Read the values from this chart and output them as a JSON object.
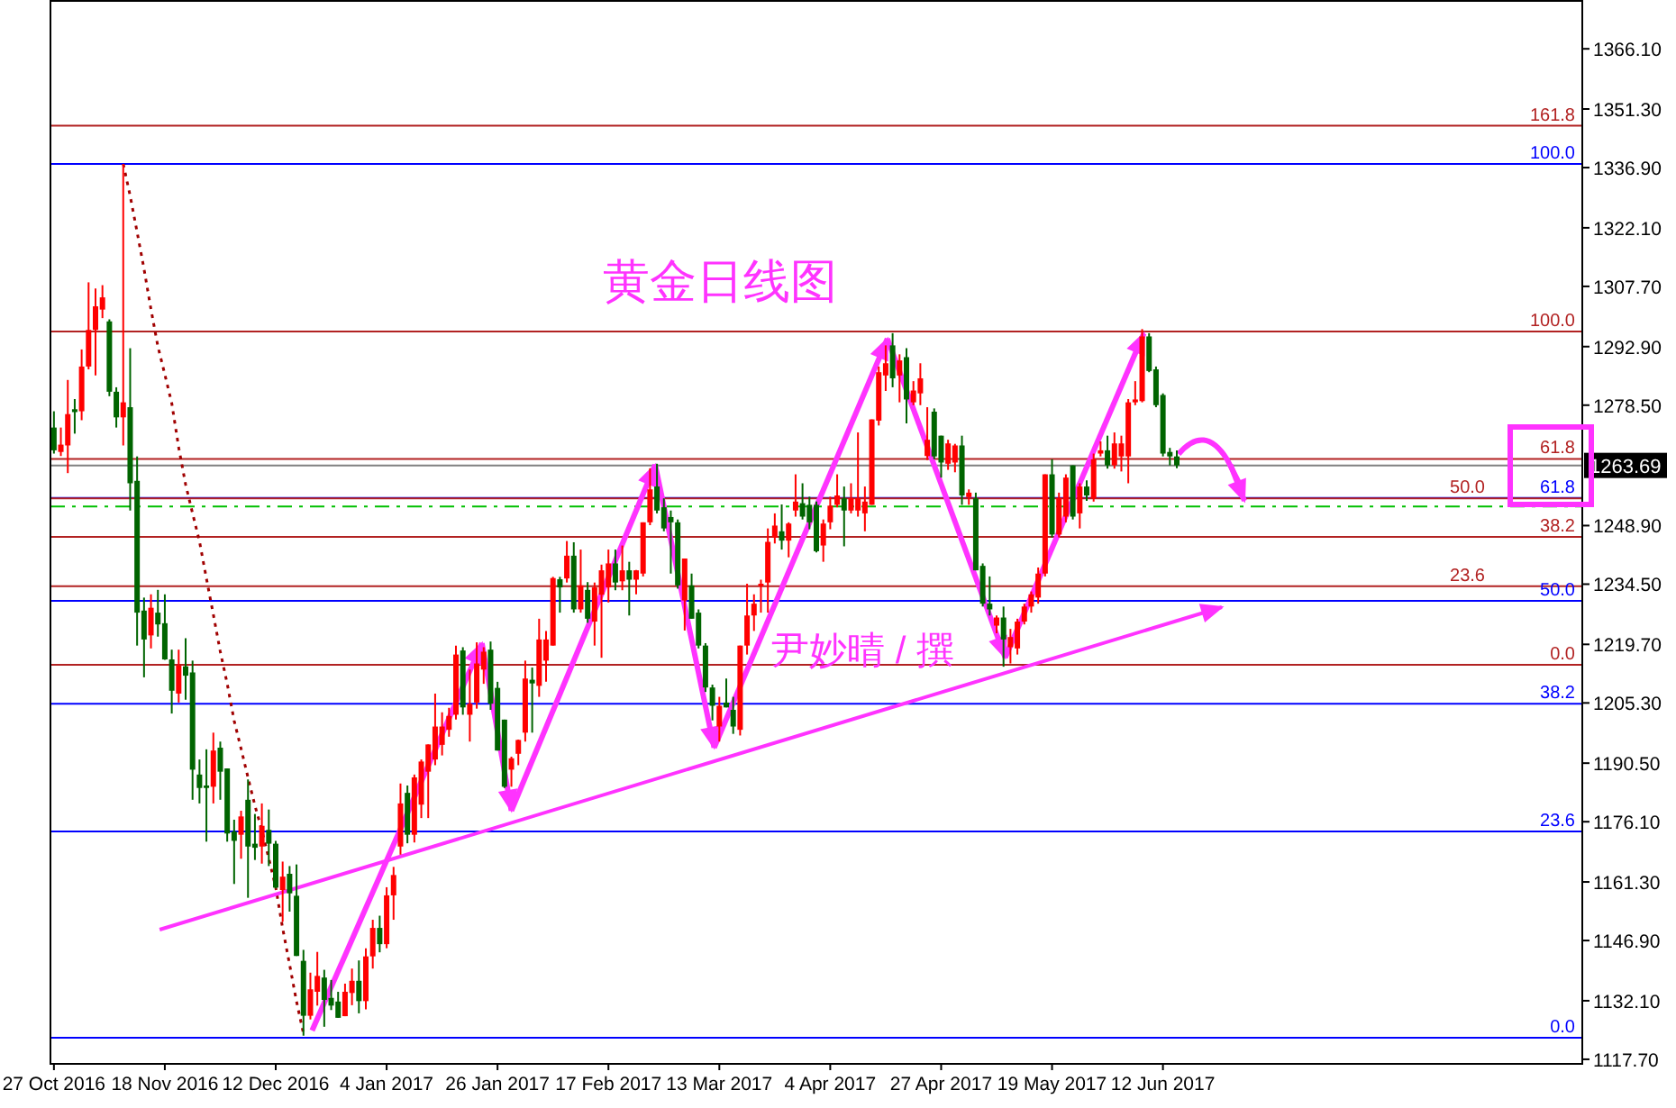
{
  "chart_data": {
    "type": "candlestick",
    "title": "黄金日线图",
    "categories": [
      "27 Oct 2016",
      null,
      null,
      null,
      null,
      null,
      null,
      null,
      null,
      null,
      null,
      null,
      null,
      null,
      null,
      null,
      "18 Nov 2016",
      null,
      null,
      null,
      null,
      null,
      null,
      null,
      null,
      null,
      null,
      null,
      null,
      null,
      null,
      null,
      "12 Dec 2016",
      null,
      null,
      null,
      null,
      null,
      null,
      null,
      null,
      null,
      null,
      null,
      null,
      null,
      null,
      null,
      "4 Jan 2017",
      null,
      null,
      null,
      null,
      null,
      null,
      null,
      null,
      null,
      null,
      null,
      null,
      null,
      null,
      null,
      "26 Jan 2017",
      null,
      null,
      null,
      null,
      null,
      null,
      null,
      null,
      null,
      null,
      null,
      null,
      null,
      null,
      null,
      "17 Feb 2017",
      null,
      null,
      null,
      null,
      null,
      null,
      null,
      null,
      null,
      null,
      null,
      null,
      null,
      null,
      null,
      "13 Mar 2017",
      null,
      null,
      null,
      null,
      null,
      null,
      null,
      null,
      null,
      null,
      null,
      null,
      null,
      null,
      null,
      "4 Apr 2017",
      null,
      null,
      null,
      null,
      null,
      null,
      null,
      null,
      null,
      null,
      null,
      null,
      null,
      null,
      null,
      "27 Apr 2017",
      null,
      null,
      null,
      null,
      null,
      null,
      null,
      null,
      null,
      null,
      null,
      null,
      null,
      null,
      null,
      "19 May 2017",
      null,
      null,
      null,
      null,
      null,
      null,
      null,
      null,
      null,
      null,
      null,
      null,
      null,
      null,
      null,
      "12 Jun 2017",
      null,
      null,
      null,
      null,
      null,
      null,
      null,
      null,
      null,
      null,
      null,
      null,
      null,
      null,
      null,
      null,
      null,
      null,
      null,
      null,
      null,
      null,
      null,
      null,
      null,
      null,
      null,
      null,
      null,
      null,
      null,
      null,
      null,
      null,
      null,
      null,
      null,
      null,
      null,
      null,
      null,
      null,
      null,
      null,
      null,
      null,
      null,
      null,
      null,
      null,
      null,
      null,
      null,
      null,
      null,
      null,
      null,
      null,
      null,
      null
    ],
    "ohlc": [
      [
        1273,
        1277,
        1266.6,
        1267.4
      ],
      [
        1267,
        1273,
        1266,
        1268.8
      ],
      [
        1268.6,
        1284.7,
        1261.8,
        1276.3
      ],
      [
        1277.5,
        1280,
        1271.5,
        1276.8
      ],
      [
        1277,
        1292.2,
        1274.8,
        1288
      ],
      [
        1288,
        1308.7,
        1287.3,
        1297
      ],
      [
        1297,
        1307.2,
        1285.8,
        1302.8
      ],
      [
        1302,
        1308,
        1299.9,
        1305
      ],
      [
        1299.1,
        1299.6,
        1280.7,
        1281.8
      ],
      [
        1281.8,
        1282.9,
        1273,
        1275.5
      ],
      [
        1275.5,
        1337.8,
        1268.6,
        1279.2
      ],
      [
        1278,
        1292.5,
        1252.6,
        1259.3
      ],
      [
        1259.9,
        1265.9,
        1219.4,
        1227.5
      ],
      [
        1228,
        1231.2,
        1211.6,
        1220.9
      ],
      [
        1221.9,
        1232,
        1218.7,
        1228.7
      ],
      [
        1227.5,
        1233.1,
        1221.6,
        1224.6
      ],
      [
        1224.9,
        1232,
        1215.9,
        1216
      ],
      [
        1216,
        1218.4,
        1202.7,
        1208.3
      ],
      [
        1207.6,
        1218.4,
        1205.4,
        1214.5
      ],
      [
        1214.3,
        1221.2,
        1206.1,
        1212
      ],
      [
        1212.8,
        1215.7,
        1181.5,
        1188.9
      ],
      [
        1187.7,
        1191.4,
        1180.6,
        1184.4
      ],
      [
        1185,
        1193.9,
        1171.2,
        1184.4
      ],
      [
        1184.7,
        1198,
        1180.6,
        1193.6
      ],
      [
        1194.3,
        1195.8,
        1181.5,
        1188.4
      ],
      [
        1189.2,
        1189.2,
        1171.2,
        1173.2
      ],
      [
        1173.7,
        1176.6,
        1160.8,
        1171.4
      ],
      [
        1172.9,
        1178.8,
        1167,
        1177.4
      ],
      [
        1181.5,
        1186.5,
        1157.4,
        1170
      ],
      [
        1170.7,
        1178,
        1166.7,
        1169.7
      ],
      [
        1170,
        1180.6,
        1165.8,
        1175.1
      ],
      [
        1174.1,
        1179.1,
        1165.2,
        1170.7
      ],
      [
        1170.7,
        1171.4,
        1159.7,
        1159.9
      ],
      [
        1159.3,
        1166.3,
        1151.5,
        1162.6
      ],
      [
        1163.3,
        1165.2,
        1154,
        1158.5
      ],
      [
        1157.9,
        1165.6,
        1143.1,
        1143.1
      ],
      [
        1141.9,
        1144.6,
        1123.5,
        1128.4
      ],
      [
        1128.4,
        1139,
        1127.5,
        1134.9
      ],
      [
        1134.3,
        1144.1,
        1130.9,
        1138.2
      ],
      [
        1137.8,
        1139.7,
        1125.7,
        1132.3
      ],
      [
        1132.8,
        1137.2,
        1129.8,
        1130.9
      ],
      [
        1131.9,
        1134.3,
        1127.9,
        1127.9
      ],
      [
        1128.3,
        1136.3,
        1128.3,
        1134.3
      ],
      [
        1134,
        1140,
        1131,
        1137
      ],
      [
        1137,
        1142,
        1129,
        1132
      ],
      [
        1132,
        1145,
        1130,
        1143
      ],
      [
        1143,
        1152,
        1140,
        1150
      ],
      [
        1150,
        1153,
        1144,
        1146
      ],
      [
        1146,
        1160,
        1145,
        1158
      ],
      [
        1158,
        1165,
        1152,
        1163
      ],
      [
        1170,
        1185.5,
        1168,
        1180.6
      ],
      [
        1183.2,
        1185,
        1170.8,
        1172.9
      ],
      [
        1172.9,
        1187.7,
        1171,
        1187
      ],
      [
        1180.3,
        1191.4,
        1177,
        1190.9
      ],
      [
        1188.4,
        1195.1,
        1177,
        1195.1
      ],
      [
        1191.4,
        1207.6,
        1190,
        1199.5
      ],
      [
        1195,
        1203,
        1192.4,
        1199.5
      ],
      [
        1198.7,
        1204.1,
        1197,
        1202.1
      ],
      [
        1202.4,
        1219.4,
        1201.2,
        1217.2
      ],
      [
        1218.2,
        1219,
        1202.4,
        1204.2
      ],
      [
        1202.4,
        1213.5,
        1195.8,
        1205.1
      ],
      [
        1205.4,
        1220.2,
        1203.9,
        1215
      ],
      [
        1213.5,
        1219,
        1210,
        1217.9
      ],
      [
        1218.4,
        1220.4,
        1203.6,
        1205.1
      ],
      [
        1209,
        1210.5,
        1193.6,
        1193.6
      ],
      [
        1201.2,
        1201.2,
        1184.4,
        1184.7
      ],
      [
        1188.9,
        1192.1,
        1184.7,
        1191.7
      ],
      [
        1192.8,
        1196.3,
        1190,
        1196.2
      ],
      [
        1198,
        1215.7,
        1195.8,
        1211.3
      ],
      [
        1211,
        1214,
        1198,
        1210.1
      ],
      [
        1209.5,
        1226,
        1206.8,
        1220.9
      ],
      [
        1215.7,
        1223,
        1210.5,
        1220.9
      ],
      [
        1219.4,
        1236.3,
        1219.4,
        1236
      ],
      [
        1235.7,
        1236.3,
        1227.5,
        1233.7
      ],
      [
        1235.9,
        1245.1,
        1234.9,
        1241.5
      ],
      [
        1241.5,
        1244.8,
        1227.5,
        1228.3
      ],
      [
        1228.3,
        1243,
        1227.5,
        1234.2
      ],
      [
        1233.1,
        1235,
        1225,
        1226
      ],
      [
        1225.3,
        1234.9,
        1219.4,
        1233.7
      ],
      [
        1231.9,
        1239.3,
        1216.4,
        1237.9
      ],
      [
        1233.7,
        1243,
        1230,
        1239.6
      ],
      [
        1239.6,
        1243,
        1233,
        1234.9
      ],
      [
        1235.2,
        1244,
        1233,
        1237.9
      ],
      [
        1237.9,
        1240,
        1226.8,
        1235.6
      ],
      [
        1235.6,
        1238,
        1232,
        1237.9
      ],
      [
        1237.1,
        1249.7,
        1236.4,
        1249.7
      ],
      [
        1249.7,
        1263,
        1249,
        1257.8
      ],
      [
        1258.5,
        1264.1,
        1251.9,
        1252.6
      ],
      [
        1253.4,
        1255.6,
        1247.5,
        1248.2
      ],
      [
        1251,
        1252.6,
        1237.1,
        1249.7
      ],
      [
        1249.7,
        1250.4,
        1233.4,
        1234.2
      ],
      [
        1230.5,
        1240.8,
        1223.1,
        1240.8
      ],
      [
        1234.2,
        1237.1,
        1226,
        1226
      ],
      [
        1227.5,
        1228.3,
        1218.7,
        1219.4
      ],
      [
        1219.4,
        1220,
        1208,
        1209.1
      ],
      [
        1209.1,
        1209.8,
        1201,
        1204.6
      ],
      [
        1199.5,
        1206.8,
        1195.8,
        1204.6
      ],
      [
        1205.4,
        1211.3,
        1204.2,
        1204.2
      ],
      [
        1203.6,
        1206.8,
        1197.7,
        1199.5
      ],
      [
        1198.7,
        1219.4,
        1197.3,
        1219.4
      ],
      [
        1219.4,
        1234.6,
        1217.2,
        1226.8
      ],
      [
        1226.8,
        1232,
        1223,
        1229.7
      ],
      [
        1234,
        1235.6,
        1227.5,
        1234.6
      ],
      [
        1234.9,
        1248.2,
        1227.5,
        1244.9
      ],
      [
        1246,
        1251.9,
        1244.5,
        1248.9
      ],
      [
        1247.5,
        1254.1,
        1243,
        1245.2
      ],
      [
        1245.2,
        1249.7,
        1241.1,
        1249.4
      ],
      [
        1252.6,
        1261.5,
        1251.1,
        1254.8
      ],
      [
        1254.4,
        1259.3,
        1250.4,
        1251.1
      ],
      [
        1254,
        1256,
        1248,
        1249.7
      ],
      [
        1254,
        1254.8,
        1242.3,
        1242.6
      ],
      [
        1244,
        1250.4,
        1240,
        1249.4
      ],
      [
        1249.7,
        1256,
        1248,
        1253.8
      ],
      [
        1254,
        1261.5,
        1253.4,
        1256.3
      ],
      [
        1255.6,
        1258.5,
        1243.8,
        1252.6
      ],
      [
        1252.6,
        1259.3,
        1251.9,
        1255.6
      ],
      [
        1252.6,
        1271.8,
        1251.1,
        1255.6
      ],
      [
        1251.9,
        1258.5,
        1247.5,
        1254.8
      ],
      [
        1254,
        1275,
        1254,
        1275
      ],
      [
        1274.7,
        1288,
        1273.5,
        1286.6
      ],
      [
        1285.8,
        1293.2,
        1282,
        1288.8
      ],
      [
        1293.2,
        1296.2,
        1282.9,
        1285.1
      ],
      [
        1285.8,
        1291,
        1279.2,
        1289.5
      ],
      [
        1290.3,
        1292.5,
        1274,
        1279.9
      ],
      [
        1279.2,
        1284.4,
        1278.5,
        1282.1
      ],
      [
        1281.4,
        1288.8,
        1278.5,
        1285.1
      ],
      [
        1266,
        1278,
        1265,
        1270
      ],
      [
        1276.9,
        1277.7,
        1265.2,
        1265.9
      ],
      [
        1271,
        1271,
        1260.7,
        1264.4
      ],
      [
        1264.1,
        1270,
        1262.6,
        1269.1
      ],
      [
        1264.4,
        1269,
        1262,
        1268.6
      ],
      [
        1268.6,
        1271,
        1254,
        1256.3
      ],
      [
        1255.9,
        1257.8,
        1254,
        1257
      ],
      [
        1255.6,
        1257,
        1237.9,
        1237.9
      ],
      [
        1239,
        1239.6,
        1229,
        1229.7
      ],
      [
        1229.7,
        1236.4,
        1226.8,
        1228.3
      ],
      [
        1224.3,
        1226.8,
        1222.4,
        1226.3
      ],
      [
        1226.3,
        1229,
        1214.2,
        1220.9
      ],
      [
        1219,
        1223.5,
        1215,
        1221.5
      ],
      [
        1218.7,
        1226,
        1217.2,
        1225.3
      ],
      [
        1225.3,
        1229.7,
        1224.6,
        1229
      ],
      [
        1229,
        1232.7,
        1227.5,
        1232
      ],
      [
        1231.2,
        1238.6,
        1229.7,
        1237.1
      ],
      [
        1237.1,
        1261.5,
        1236.4,
        1261.5
      ],
      [
        1261.5,
        1265.2,
        1246,
        1246.7
      ],
      [
        1246.7,
        1257,
        1246,
        1255.6
      ],
      [
        1251.1,
        1261.5,
        1249.7,
        1260.7
      ],
      [
        1263.7,
        1263.7,
        1250.4,
        1251.1
      ],
      [
        1251.9,
        1259.3,
        1248.2,
        1258.5
      ],
      [
        1258.5,
        1260,
        1255,
        1256.3
      ],
      [
        1255.6,
        1266.6,
        1254.8,
        1265.2
      ],
      [
        1266.6,
        1269.6,
        1265.9,
        1267.4
      ],
      [
        1267.4,
        1271,
        1262.9,
        1263.7
      ],
      [
        1263.7,
        1271.8,
        1262.9,
        1269.1
      ],
      [
        1265.9,
        1271,
        1262.2,
        1269.1
      ],
      [
        1265.9,
        1280,
        1259.3,
        1279.2
      ],
      [
        1279.2,
        1284.4,
        1278.5,
        1279.9
      ],
      [
        1279.5,
        1297.2,
        1279.2,
        1295.4
      ],
      [
        1295.4,
        1296.2,
        1286.6,
        1286.9
      ],
      [
        1287.3,
        1288,
        1278,
        1278.5
      ],
      [
        1281,
        1281.4,
        1265.9,
        1266.6
      ],
      [
        1267,
        1268,
        1263.7,
        1265.9
      ],
      [
        1265.9,
        1267.4,
        1263,
        1263.69
      ],
      null,
      null,
      null,
      null,
      null,
      null,
      null,
      null,
      null,
      null,
      null,
      null,
      null,
      null,
      null,
      null,
      null,
      null,
      null,
      null,
      null,
      null,
      null,
      null,
      null,
      null,
      null,
      null,
      null,
      null,
      null,
      null,
      null,
      null,
      null,
      null,
      null,
      null,
      null,
      null,
      null,
      null,
      null,
      null,
      null,
      null,
      null,
      null,
      null,
      null,
      null,
      null,
      null,
      null,
      null,
      null,
      null,
      null
    ],
    "colors": [
      "#006400",
      "#ff0000",
      "#ff0000",
      "#006400",
      "#ff0000",
      "#ff0000",
      "#ff0000",
      "#ff0000",
      "#006400",
      "#006400",
      "#ff0000",
      "#006400",
      "#006400",
      "#006400",
      "#ff0000",
      "#006400",
      "#006400",
      "#006400",
      "#ff0000",
      "#006400",
      "#006400",
      "#006400",
      "#006400",
      "#ff0000",
      "#006400",
      "#006400",
      "#006400",
      "#ff0000",
      "#006400",
      "#006400",
      "#ff0000",
      "#006400",
      "#006400",
      "#ff0000",
      "#006400",
      "#006400",
      "#006400",
      "#ff0000",
      "#ff0000",
      "#006400",
      "#006400",
      "#006400",
      "#ff0000",
      "#ff0000",
      "#006400",
      "#ff0000",
      "#ff0000",
      "#006400",
      "#ff0000",
      "#ff0000",
      "#ff0000",
      "#006400",
      "#ff0000",
      "#ff0000",
      "#ff0000",
      "#ff0000",
      "#ff0000",
      "#ff0000",
      "#ff0000",
      "#006400",
      "#ff0000",
      "#ff0000",
      "#ff0000",
      "#006400",
      "#006400",
      "#006400",
      "#ff0000",
      "#ff0000",
      "#ff0000",
      "#006400",
      "#ff0000",
      "#ff0000",
      "#ff0000",
      "#006400",
      "#ff0000",
      "#006400",
      "#ff0000",
      "#006400",
      "#ff0000",
      "#ff0000",
      "#ff0000",
      "#006400",
      "#ff0000",
      "#006400",
      "#ff0000",
      "#ff0000",
      "#ff0000",
      "#006400",
      "#006400",
      "#006400",
      "#006400",
      "#ff0000",
      "#006400",
      "#006400",
      "#006400",
      "#006400",
      "#ff0000",
      "#006400",
      "#006400",
      "#ff0000",
      "#ff0000",
      "#ff0000",
      "#ff0000",
      "#ff0000",
      "#ff0000",
      "#006400",
      "#ff0000",
      "#ff0000",
      "#006400",
      "#006400",
      "#006400",
      "#ff0000",
      "#ff0000",
      "#ff0000",
      "#006400",
      "#ff0000",
      "#ff0000",
      "#ff0000",
      "#ff0000",
      "#ff0000",
      "#ff0000",
      "#006400",
      "#ff0000",
      "#006400",
      "#ff0000",
      "#ff0000",
      "#ff0000",
      "#006400",
      "#006400",
      "#ff0000",
      "#ff0000",
      "#006400",
      "#ff0000",
      "#006400",
      "#006400",
      "#006400",
      "#ff0000",
      "#006400",
      "#ff0000",
      "#ff0000",
      "#ff0000",
      "#ff0000",
      "#ff0000",
      "#ff0000",
      "#006400",
      "#ff0000",
      "#ff0000",
      "#006400",
      "#ff0000",
      "#006400",
      "#ff0000",
      "#ff0000",
      "#006400",
      "#ff0000",
      "#ff0000",
      "#ff0000",
      "#ff0000",
      "#ff0000",
      "#006400",
      "#006400",
      "#006400",
      "#006400",
      "#006400",
      null,
      null,
      null,
      null,
      null,
      null,
      null,
      null,
      null,
      null,
      null,
      null,
      null,
      null,
      null,
      null,
      null,
      null,
      null,
      null,
      null,
      null,
      null,
      null,
      null,
      null,
      null,
      null,
      null,
      null,
      null,
      null,
      null,
      null,
      null,
      null,
      null,
      null,
      null,
      null,
      null,
      null,
      null,
      null,
      null,
      null,
      null,
      null,
      null,
      null,
      null,
      null,
      null,
      null,
      null,
      null,
      null,
      null
    ],
    "series": [
      {
        "type": "line",
        "color": "#a00000",
        "line_style": "dotted",
        "marker": "none",
        "values": [
          null,
          null,
          null,
          null,
          null,
          null,
          null,
          null,
          null,
          null,
          1337.8,
          1330,
          1321,
          1312,
          1302,
          1293,
          1286,
          1279,
          1268,
          1259,
          1252,
          1245,
          1236,
          1227,
          1218,
          1210,
          1201,
          1194,
          1187,
          1180,
          1174,
          1167,
          1160,
          1150,
          1141,
          1132,
          1124,
          null,
          null,
          null,
          null,
          null,
          null,
          null,
          null,
          null,
          null,
          null,
          null,
          null,
          null,
          null,
          null,
          null,
          null,
          null,
          null,
          null,
          null,
          null,
          null,
          null,
          null,
          null,
          null,
          null,
          null,
          null,
          null,
          null,
          null,
          null,
          null,
          null,
          null,
          null,
          null,
          null,
          null,
          null,
          null,
          null,
          null,
          null,
          null,
          null,
          null,
          null,
          null,
          null,
          null,
          null,
          null,
          null,
          null,
          null,
          null,
          null,
          null,
          null,
          null,
          null,
          null,
          null,
          null,
          null,
          null,
          null,
          null,
          null,
          null,
          null,
          null,
          null,
          null,
          null,
          null,
          null,
          null,
          null,
          null,
          null,
          null,
          null,
          null,
          null,
          null,
          null,
          null,
          null,
          null,
          null,
          null,
          null,
          null,
          null,
          null,
          null,
          null,
          null,
          null,
          null,
          null,
          null,
          null,
          null,
          null,
          null,
          null,
          null,
          null,
          null,
          null,
          null,
          null,
          null,
          null,
          null,
          null,
          null,
          null,
          null,
          null,
          null,
          null,
          null,
          null,
          null,
          null,
          null,
          null,
          null,
          null,
          null,
          null,
          null,
          null,
          null,
          null,
          null,
          null,
          null,
          null,
          null,
          null,
          null,
          null,
          null,
          null,
          null,
          null,
          null,
          null,
          null,
          null,
          null,
          null,
          null,
          null,
          null,
          null,
          null,
          null,
          null,
          null,
          null,
          null,
          null,
          null,
          null,
          null,
          null,
          null,
          null,
          null,
          null,
          null,
          null,
          null,
          null,
          null
        ]
      }
    ],
    "ylim": [
      1116.8,
      1378.1
    ],
    "yticks": [
      {
        "value": 1366.1,
        "label": "1366.10"
      },
      {
        "value": 1351.3,
        "label": "1351.30"
      },
      {
        "value": 1336.9,
        "label": "1336.90"
      },
      {
        "value": 1322.1,
        "label": "1322.10"
      },
      {
        "value": 1307.7,
        "label": "1307.70"
      },
      {
        "value": 1292.9,
        "label": "1292.90"
      },
      {
        "value": 1278.5,
        "label": "1278.50"
      },
      {
        "value": 1248.9,
        "label": "1248.90"
      },
      {
        "value": 1234.5,
        "label": "1234.50"
      },
      {
        "value": 1219.7,
        "label": "1219.70"
      },
      {
        "value": 1205.3,
        "label": "1205.30"
      },
      {
        "value": 1190.5,
        "label": "1190.50"
      },
      {
        "value": 1176.1,
        "label": "1176.10"
      },
      {
        "value": 1161.3,
        "label": "1161.30"
      },
      {
        "value": 1146.9,
        "label": "1146.90"
      },
      {
        "value": 1132.1,
        "label": "1132.10"
      },
      {
        "value": 1117.7,
        "label": "1117.70"
      }
    ],
    "grid": false,
    "ref_lines": [
      {
        "axis": "y",
        "value": 1123.0,
        "color": "#0000ff"
      },
      {
        "axis": "y",
        "value": 1173.7,
        "color": "#0000ff"
      },
      {
        "axis": "y",
        "value": 1205.1,
        "color": "#0000ff"
      },
      {
        "axis": "y",
        "value": 1230.4,
        "color": "#0000ff"
      },
      {
        "axis": "y",
        "value": 1255.7,
        "color": "#0000ff"
      },
      {
        "axis": "y",
        "value": 1337.8,
        "color": "#0000ff"
      },
      {
        "axis": "y",
        "value": 1214.7,
        "color": "#b22222"
      },
      {
        "axis": "y",
        "value": 1234.0,
        "color": "#b22222"
      },
      {
        "axis": "y",
        "value": 1246.1,
        "color": "#b22222"
      },
      {
        "axis": "y",
        "value": 1255.6,
        "color": "#b22222"
      },
      {
        "axis": "y",
        "value": 1265.3,
        "color": "#b22222"
      },
      {
        "axis": "y",
        "value": 1296.6,
        "color": "#b22222"
      },
      {
        "axis": "y",
        "value": 1347.2,
        "color": "#b22222"
      },
      {
        "axis": "y",
        "value": 1253.6,
        "color": "#00c000",
        "line_style": "dashed"
      },
      {
        "axis": "y",
        "value": 1263.69,
        "label": "1263.69",
        "color": "#808080"
      }
    ],
    "annotations": [
      "尹妙晴 / 撰",
      {
        "text": "0.0",
        "y": 1123.0
      },
      {
        "text": "23.6",
        "y": 1173.7
      },
      {
        "text": "38.2",
        "y": 1205.1
      },
      {
        "text": "50.0",
        "y": 1230.4
      },
      {
        "text": "61.8",
        "y": 1255.7
      },
      {
        "text": "100.0",
        "y": 1337.8
      },
      {
        "text": "0.0",
        "y": 1214.7
      },
      {
        "text": "23.6",
        "y": 1234.0
      },
      {
        "text": "38.2",
        "y": 1246.1
      },
      {
        "text": "50.0",
        "y": 1255.6
      },
      {
        "text": "61.8",
        "y": 1265.3
      },
      {
        "text": "100.0",
        "y": 1296.6
      },
      {
        "text": "161.8",
        "y": 1347.2
      }
    ]
  }
}
